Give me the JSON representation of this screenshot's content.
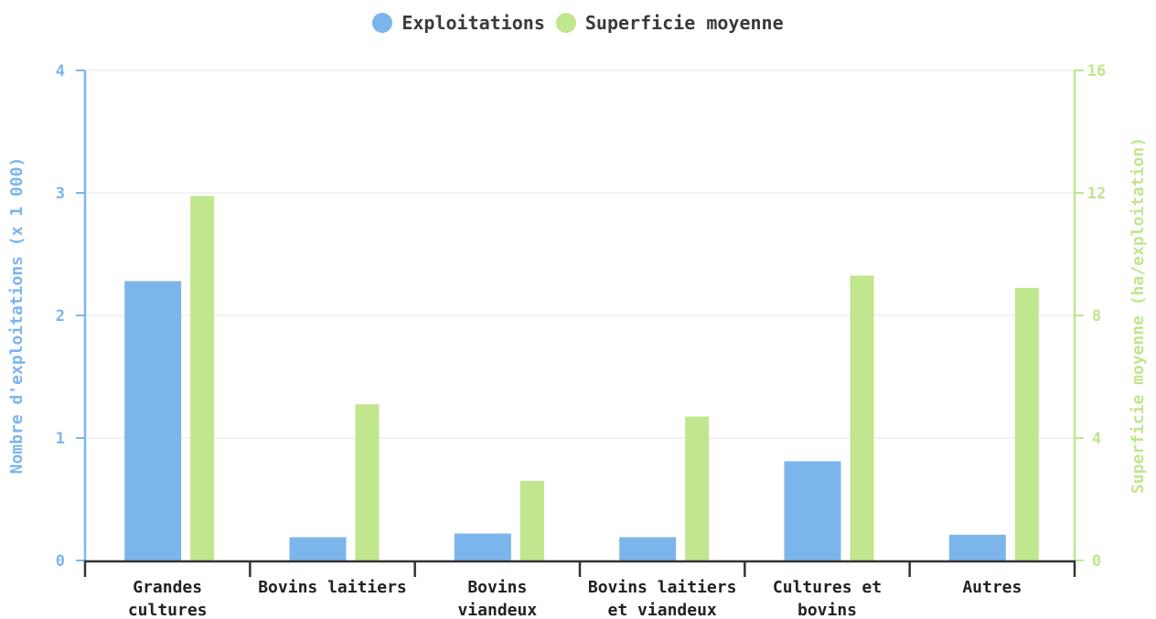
{
  "chart_data": {
    "type": "bar",
    "categories": [
      [
        "Grandes",
        "cultures"
      ],
      [
        "Bovins laitiers"
      ],
      [
        "Bovins",
        "viandeux"
      ],
      [
        "Bovins laitiers",
        "et viandeux"
      ],
      [
        "Cultures et",
        "bovins"
      ],
      [
        "Autres"
      ]
    ],
    "series": [
      {
        "name": "Exploitations",
        "axis": "left",
        "color": "#7cb5ec",
        "values": [
          2.28,
          0.19,
          0.22,
          0.19,
          0.81,
          0.21
        ]
      },
      {
        "name": "Superficie moyenne",
        "axis": "right",
        "color": "#c0e68e",
        "values": [
          11.9,
          5.1,
          2.6,
          4.7,
          9.3,
          8.9
        ]
      }
    ],
    "left_axis": {
      "label": "Nombre d'exploitations (x 1 000)",
      "ylim": [
        0,
        4
      ],
      "ticks": [
        "0",
        "1",
        "2",
        "3",
        "4"
      ],
      "color": "#7cb5ec"
    },
    "right_axis": {
      "label": "Superficie moyenne (ha/exploitation)",
      "ylim": [
        0,
        16
      ],
      "ticks": [
        "0",
        "4",
        "8",
        "12",
        "16"
      ],
      "color": "#c0e68e"
    },
    "grid": true,
    "legend_position": "top-center"
  }
}
